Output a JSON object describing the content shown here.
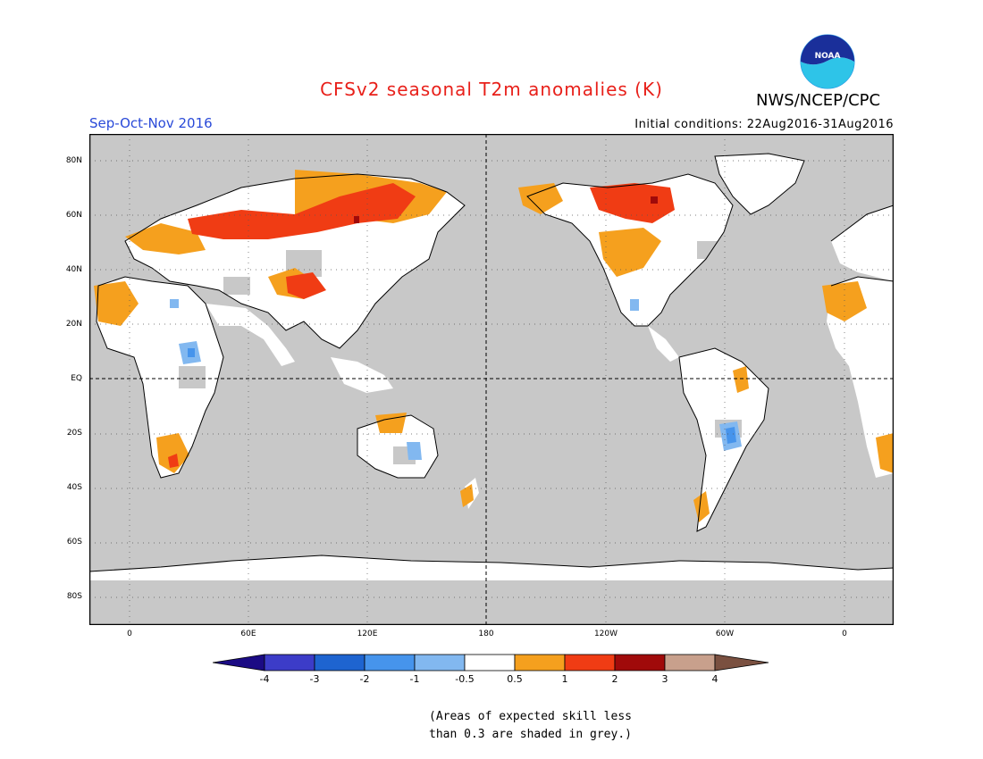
{
  "header": {
    "title": "CFSv2 seasonal T2m anomalies (K)",
    "agency": "NWS/NCEP/CPC",
    "season": "Sep-Oct-Nov 2016",
    "initial_conditions": "Initial conditions: 22Aug2016-31Aug2016",
    "logo_text": "NOAA"
  },
  "map": {
    "lat_labels": [
      "80N",
      "60N",
      "40N",
      "20N",
      "EQ",
      "20S",
      "40S",
      "60S",
      "80S"
    ],
    "lon_labels": [
      "0",
      "60E",
      "120E",
      "180",
      "120W",
      "60W",
      "0"
    ],
    "land_color": "#ffffff",
    "low_skill_color": "#c8c8c8"
  },
  "colorbar": {
    "colors": [
      "#1b0b84",
      "#3c3cc8",
      "#1e64d0",
      "#4694ec",
      "#82b8f0",
      "#ffffff",
      "#f5a01e",
      "#f03c14",
      "#a00a0a",
      "#c8a08c",
      "#7a5040"
    ],
    "tick_labels": [
      "-4",
      "-3",
      "-2",
      "-1",
      "-0.5",
      "0.5",
      "1",
      "2",
      "3",
      "4"
    ]
  },
  "footnote": {
    "line1": "(Areas of expected skill less",
    "line2": "than 0.3 are shaded in grey.)"
  }
}
